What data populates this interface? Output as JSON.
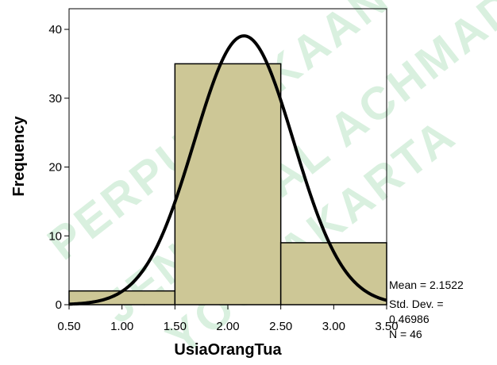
{
  "chart_data": {
    "type": "bar",
    "subtype": "histogram",
    "xlabel": "UsiaOrangTua",
    "ylabel": "Frequency",
    "xlim": [
      0.5,
      3.5
    ],
    "ylim": [
      0,
      43
    ],
    "x_ticks": [
      "0.50",
      "1.00",
      "1.50",
      "2.00",
      "2.50",
      "3.00",
      "3.50"
    ],
    "y_ticks": [
      "0",
      "10",
      "20",
      "30",
      "40"
    ],
    "bins": [
      {
        "start": 0.5,
        "end": 1.5,
        "value": 2
      },
      {
        "start": 1.5,
        "end": 2.5,
        "value": 35
      },
      {
        "start": 2.5,
        "end": 3.5,
        "value": 9
      }
    ],
    "bar_color": "#cdc796",
    "normal_curve": {
      "mean": 2.1522,
      "std_dev": 0.46986,
      "n": 46,
      "bin_width": 1.0,
      "color": "#000000"
    },
    "stats_lines": [
      "Mean = 2.1522",
      "Std. Dev. =",
      "0.46986",
      "N = 46"
    ],
    "grid": false,
    "legend": "none",
    "watermark_lines": [
      "PERPUSTAKAAN",
      "JENDERAL ACHMAD YANI",
      "YOGYAKARTA"
    ]
  }
}
